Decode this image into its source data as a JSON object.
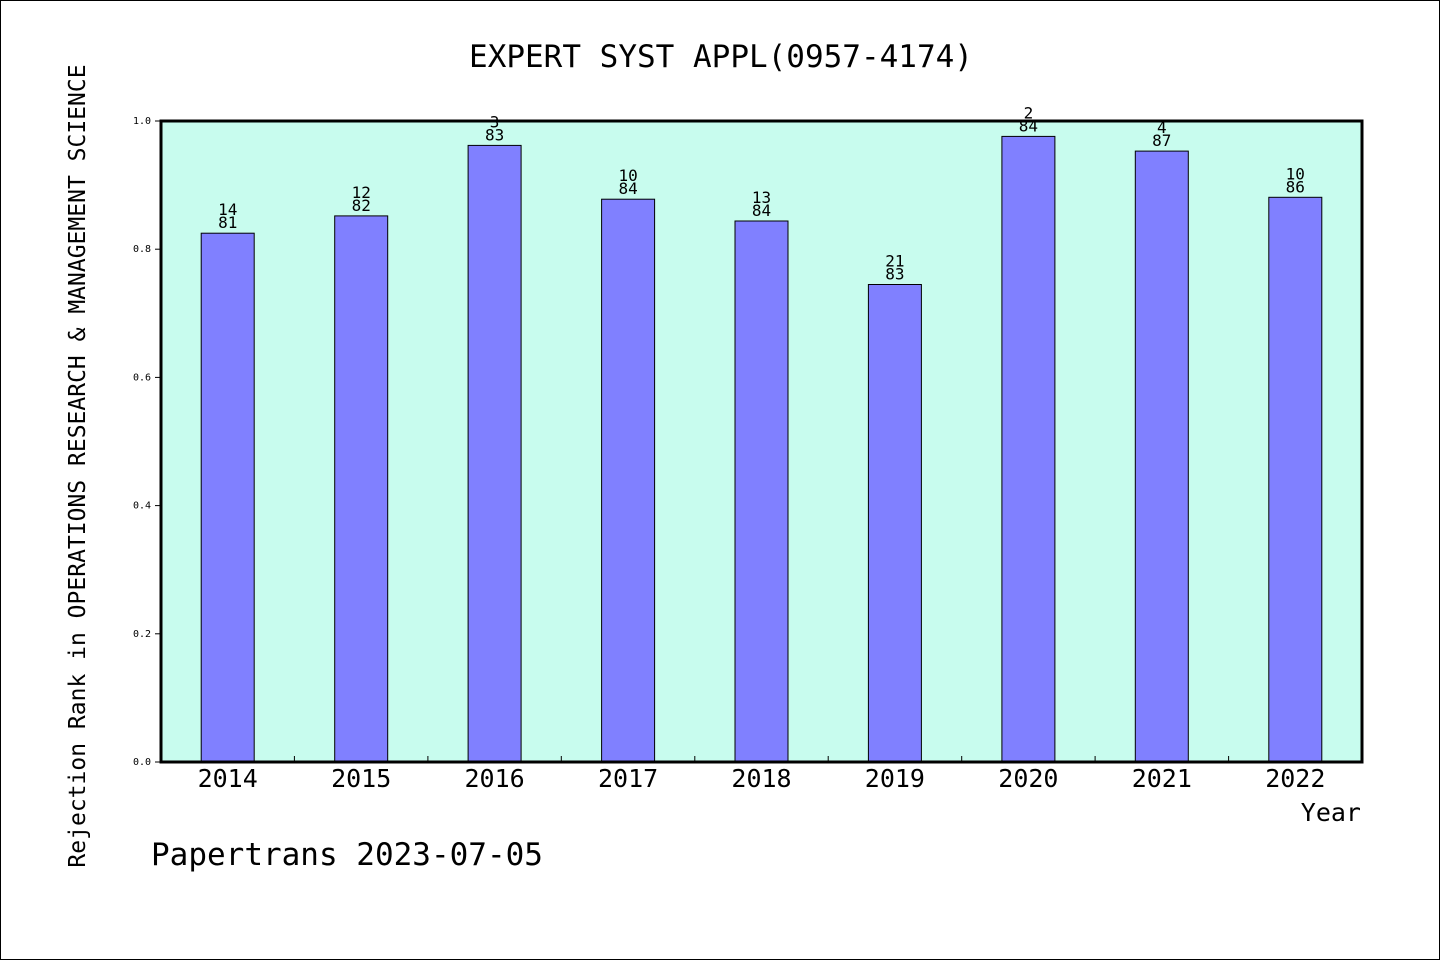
{
  "chart_data": {
    "type": "bar",
    "title": "EXPERT SYST APPL(0957-4174)",
    "xlabel": "Year",
    "ylabel": "Rejection Rank in OPERATIONS RESEARCH & MANAGEMENT SCIENCE",
    "categories": [
      "2014",
      "2015",
      "2016",
      "2017",
      "2018",
      "2019",
      "2020",
      "2021",
      "2022"
    ],
    "values": [
      0.825,
      0.852,
      0.962,
      0.878,
      0.844,
      0.745,
      0.976,
      0.953,
      0.881
    ],
    "label_top": [
      "14",
      "12",
      "3",
      "10",
      "13",
      "21",
      "2",
      "4",
      "10"
    ],
    "label_bottom": [
      "81",
      "82",
      "83",
      "84",
      "84",
      "83",
      "84",
      "87",
      "86"
    ],
    "ylim": [
      0,
      1.0
    ],
    "yticks": [
      "0.0",
      "0.2",
      "0.4",
      "0.6",
      "0.8",
      "1.0"
    ],
    "grid": false,
    "colors": {
      "bar_fill": "#8080ff",
      "plot_background": "#c8fcee",
      "axis": "#000000"
    }
  },
  "footer": "Papertrans 2023-07-05"
}
